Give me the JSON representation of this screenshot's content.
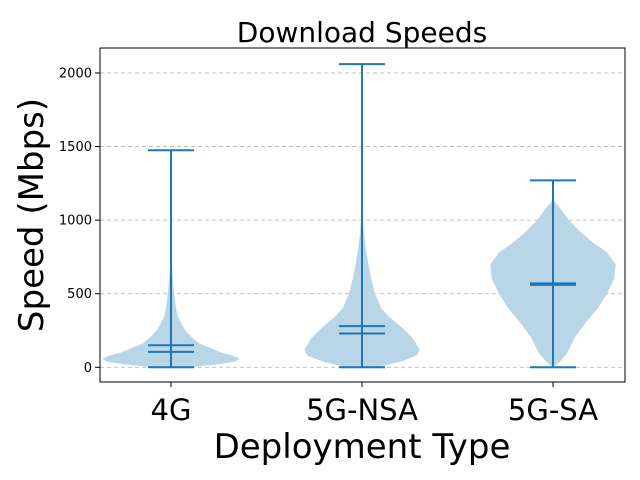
{
  "chart_data": {
    "type": "violin",
    "title": "Download Speeds",
    "xlabel": "Deployment Type",
    "ylabel": "Speed (Mbps)",
    "categories": [
      "4G",
      "5G-NSA",
      "5G-SA"
    ],
    "ylim": [
      -100,
      2170
    ],
    "yticks": [
      0,
      500,
      1000,
      1500,
      2000
    ],
    "grid": "y-dashed",
    "colors": {
      "body": "#b9d5e8",
      "line": "#1f77b4"
    },
    "series": [
      {
        "category": "4G",
        "min": 0,
        "max": 1475,
        "mean": 150,
        "median": 105,
        "density": [
          [
            0,
            0.25
          ],
          [
            20,
            0.65
          ],
          [
            40,
            0.9
          ],
          [
            60,
            0.95
          ],
          [
            80,
            0.85
          ],
          [
            100,
            0.7
          ],
          [
            130,
            0.55
          ],
          [
            160,
            0.4
          ],
          [
            200,
            0.3
          ],
          [
            250,
            0.2
          ],
          [
            300,
            0.14
          ],
          [
            350,
            0.09
          ],
          [
            400,
            0.07
          ],
          [
            500,
            0.045
          ],
          [
            600,
            0.025
          ],
          [
            700,
            0.012
          ],
          [
            800,
            0.005
          ],
          [
            1000,
            0.002
          ],
          [
            1475,
            0
          ]
        ]
      },
      {
        "category": "5G-NSA",
        "min": 0,
        "max": 2060,
        "mean": 280,
        "median": 230,
        "density": [
          [
            0,
            0.22
          ],
          [
            40,
            0.55
          ],
          [
            80,
            0.76
          ],
          [
            120,
            0.8
          ],
          [
            160,
            0.75
          ],
          [
            200,
            0.7
          ],
          [
            250,
            0.6
          ],
          [
            300,
            0.48
          ],
          [
            350,
            0.36
          ],
          [
            400,
            0.27
          ],
          [
            500,
            0.18
          ],
          [
            600,
            0.13
          ],
          [
            700,
            0.09
          ],
          [
            800,
            0.055
          ],
          [
            900,
            0.03
          ],
          [
            1000,
            0.015
          ],
          [
            1200,
            0.006
          ],
          [
            1500,
            0.002
          ],
          [
            2060,
            0
          ]
        ]
      },
      {
        "category": "5G-SA",
        "min": 0,
        "max": 1270,
        "mean": 570,
        "median": 560,
        "density": [
          [
            0,
            0
          ],
          [
            40,
            0.1
          ],
          [
            100,
            0.2
          ],
          [
            200,
            0.3
          ],
          [
            300,
            0.45
          ],
          [
            400,
            0.62
          ],
          [
            500,
            0.75
          ],
          [
            600,
            0.85
          ],
          [
            700,
            0.87
          ],
          [
            780,
            0.75
          ],
          [
            850,
            0.55
          ],
          [
            920,
            0.38
          ],
          [
            1000,
            0.22
          ],
          [
            1080,
            0.1
          ],
          [
            1120,
            0.03
          ],
          [
            1150,
            0
          ],
          [
            1270,
            0
          ]
        ]
      }
    ]
  }
}
